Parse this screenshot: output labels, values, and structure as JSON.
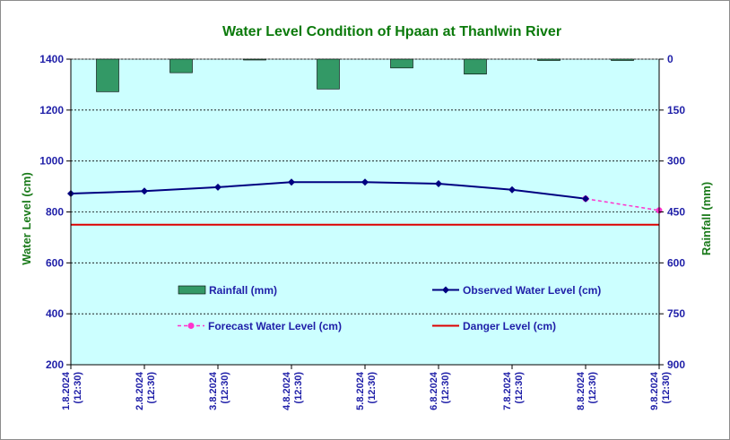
{
  "chart_data": {
    "type": "bar+line",
    "title": "Water Level Condition of Hpaan at Thanlwin River",
    "categories": [
      "1.8.2024|(12:30)",
      "2.8.2024|(12:30)",
      "3.8.2024|(12:30)",
      "4.8.2024|(12:30)",
      "5.8.2024|(12:30)",
      "6.8.2024|(12:30)",
      "7.8.2024|(12:30)",
      "8.8.2024|(12:30)",
      "9.8.2024|(12:30)"
    ],
    "ylabel_left": "Water Level (cm)",
    "ylabel_right": "Rainfall (mm)",
    "ylim_left": [
      200,
      1400
    ],
    "yticks_left": [
      "200",
      "400",
      "600",
      "800",
      "1000",
      "1200",
      "1400"
    ],
    "ylim_right": [
      900,
      0
    ],
    "yticks_right": [
      "900",
      "750",
      "600",
      "450",
      "300",
      "150",
      "0"
    ],
    "grid": true,
    "rainfall": {
      "name": "Rainfall (mm)",
      "values": [
        96,
        40,
        2,
        88,
        26,
        44,
        4,
        4,
        null
      ],
      "color": "#339966"
    },
    "observed": {
      "name": "Observed Water Level (cm)",
      "values": [
        872,
        882,
        897,
        917,
        917,
        911,
        887,
        852,
        null
      ],
      "color": "#000080"
    },
    "forecast": {
      "name": "Forecast Water Level (cm)",
      "values": [
        null,
        null,
        null,
        null,
        null,
        null,
        null,
        852,
        806
      ],
      "color": "#ff33cc"
    },
    "danger": {
      "name": "Danger Level (cm)",
      "value": 750,
      "color": "#dd0000"
    },
    "plot_background": "#ccffff"
  }
}
